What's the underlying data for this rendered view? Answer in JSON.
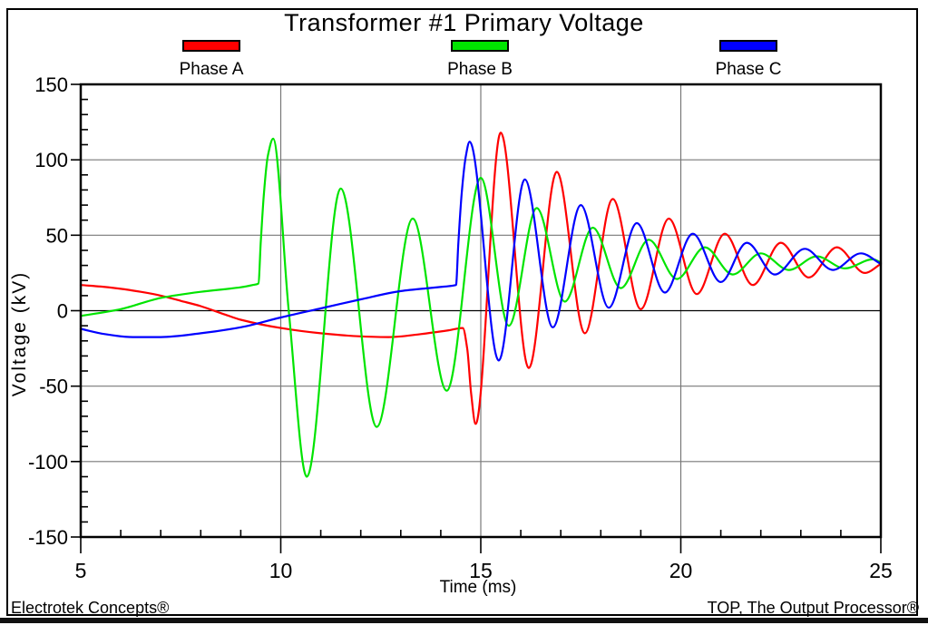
{
  "footer": {
    "left": "Electrotek Concepts®",
    "right": "TOP, The Output Processor®"
  },
  "chart_data": {
    "type": "line",
    "title": "Transformer #1 Primary Voltage",
    "xlabel": "Time (ms)",
    "ylabel": "Voltage (kV)",
    "xlim": [
      5,
      25
    ],
    "ylim": [
      -150,
      150
    ],
    "x_major_ticks": [
      5,
      10,
      15,
      20,
      25
    ],
    "x_minor_step": 1,
    "y_major_ticks": [
      150,
      100,
      50,
      0,
      -50,
      -100,
      -150
    ],
    "y_minor_step": 10,
    "grid": "major",
    "grid_color": "#787878",
    "zero_line_color": "#000000",
    "legend_position": "top",
    "series": [
      {
        "name": "Phase A",
        "color": "#ff0000",
        "points": [
          [
            5,
            17
          ],
          [
            5.5,
            16
          ],
          [
            6,
            14.5
          ],
          [
            6.5,
            12.5
          ],
          [
            7,
            10
          ],
          [
            7.5,
            6.5
          ],
          [
            8,
            3
          ],
          [
            8.6,
            -2.5
          ],
          [
            9,
            -6
          ],
          [
            10,
            -11.5
          ],
          [
            11,
            -15
          ],
          [
            12,
            -17
          ],
          [
            12.7,
            -17.5
          ],
          [
            13.5,
            -15.5
          ],
          [
            14.2,
            -13
          ],
          [
            14.55,
            -11.5
          ],
          [
            14.66,
            -25
          ],
          [
            14.76,
            -55
          ],
          [
            14.87,
            -75
          ],
          [
            15.5,
            118
          ],
          [
            16.2,
            -38
          ],
          [
            16.9,
            92
          ],
          [
            17.6,
            -15
          ],
          [
            18.3,
            74
          ],
          [
            19,
            1
          ],
          [
            19.7,
            61
          ],
          [
            20.4,
            11
          ],
          [
            21.1,
            51
          ],
          [
            21.8,
            17
          ],
          [
            22.5,
            45
          ],
          [
            23.2,
            22
          ],
          [
            23.9,
            42
          ],
          [
            24.6,
            25
          ],
          [
            25,
            31
          ]
        ]
      },
      {
        "name": "Phase B",
        "color": "#00e400",
        "points": [
          [
            5,
            -3.5
          ],
          [
            6,
            1
          ],
          [
            7,
            8.5
          ],
          [
            8,
            12.5
          ],
          [
            9,
            15.5
          ],
          [
            9.3,
            17
          ],
          [
            9.44,
            18
          ],
          [
            9.5,
            45
          ],
          [
            9.58,
            78
          ],
          [
            9.68,
            103
          ],
          [
            9.81,
            114
          ],
          [
            10.2,
            0
          ],
          [
            10.65,
            -110
          ],
          [
            11.5,
            81
          ],
          [
            12.4,
            -77
          ],
          [
            13.3,
            61
          ],
          [
            14.15,
            -53
          ],
          [
            15,
            88
          ],
          [
            15.7,
            -10
          ],
          [
            16.4,
            68
          ],
          [
            17.1,
            6
          ],
          [
            17.8,
            55
          ],
          [
            18.5,
            15
          ],
          [
            19.2,
            47
          ],
          [
            19.9,
            21
          ],
          [
            20.6,
            42
          ],
          [
            21.3,
            24
          ],
          [
            22,
            38
          ],
          [
            22.7,
            27
          ],
          [
            23.4,
            36
          ],
          [
            24.1,
            28
          ],
          [
            24.8,
            34
          ],
          [
            25,
            32
          ]
        ]
      },
      {
        "name": "Phase C",
        "color": "#0000ff",
        "points": [
          [
            5,
            -12
          ],
          [
            5.6,
            -15.5
          ],
          [
            6.3,
            -17.5
          ],
          [
            7,
            -17.5
          ],
          [
            8,
            -15
          ],
          [
            9,
            -11
          ],
          [
            10,
            -4.5
          ],
          [
            11,
            1.5
          ],
          [
            12,
            7.5
          ],
          [
            13,
            13
          ],
          [
            13.7,
            15
          ],
          [
            14.1,
            16
          ],
          [
            14.38,
            17
          ],
          [
            14.44,
            45
          ],
          [
            14.53,
            80
          ],
          [
            14.63,
            103
          ],
          [
            14.72,
            112
          ],
          [
            15.45,
            -33
          ],
          [
            16.1,
            87
          ],
          [
            16.8,
            -11
          ],
          [
            17.5,
            70
          ],
          [
            18.2,
            2
          ],
          [
            18.9,
            58
          ],
          [
            19.6,
            12
          ],
          [
            20.3,
            51
          ],
          [
            21,
            19
          ],
          [
            21.65,
            45
          ],
          [
            22.35,
            24
          ],
          [
            23.1,
            41
          ],
          [
            23.8,
            27
          ],
          [
            24.5,
            38
          ],
          [
            25,
            31
          ]
        ]
      }
    ]
  }
}
